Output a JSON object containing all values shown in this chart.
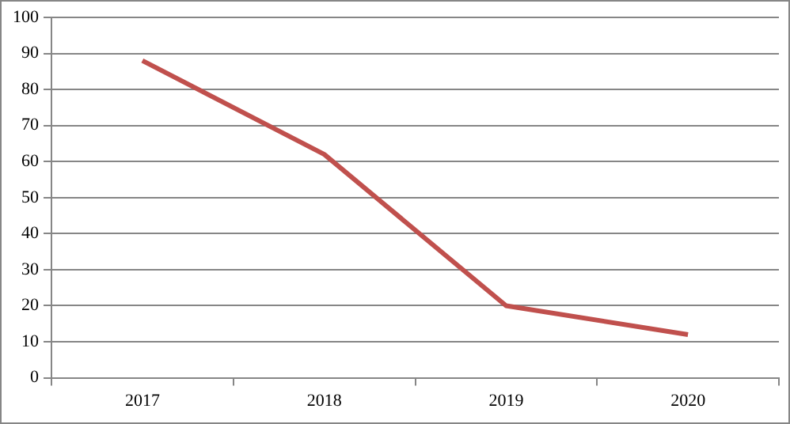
{
  "chart_data": {
    "type": "line",
    "categories": [
      "2017",
      "2018",
      "2019",
      "2020"
    ],
    "series": [
      {
        "color": "#c0504d",
        "values": [
          88,
          62,
          20,
          12
        ]
      }
    ],
    "ylim": [
      0,
      100
    ],
    "yticks": [
      0,
      10,
      20,
      30,
      40,
      50,
      60,
      70,
      80,
      90,
      100
    ],
    "grid": "y",
    "legend": false,
    "marker": "none",
    "line_style": "solid"
  }
}
